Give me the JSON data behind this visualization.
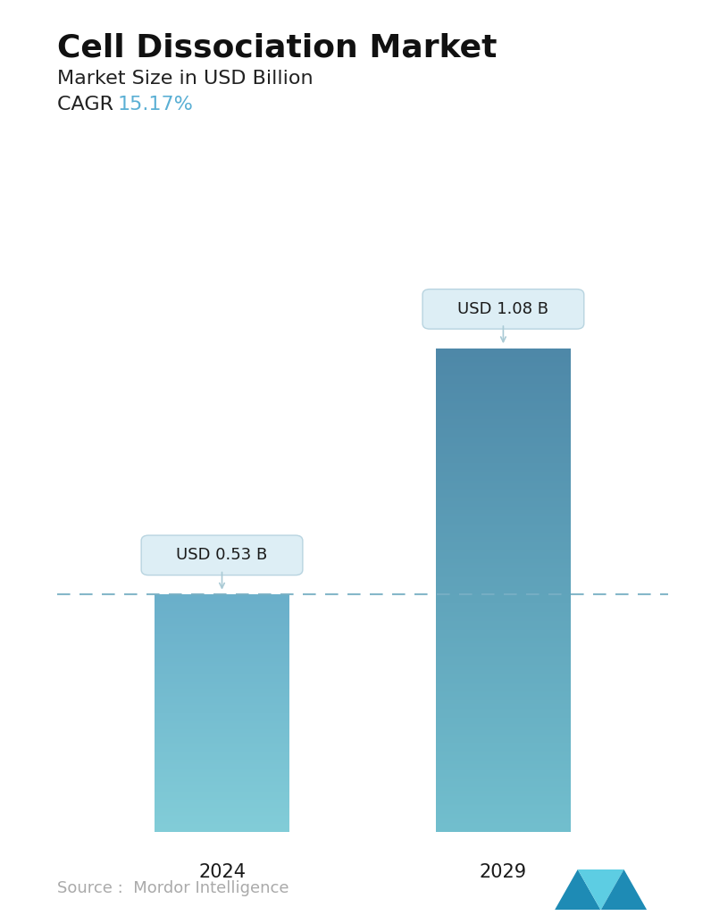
{
  "title": "Cell Dissociation Market",
  "subtitle": "Market Size in USD Billion",
  "cagr_label": "CAGR ",
  "cagr_value": "15.17%",
  "cagr_color": "#5aafd4",
  "categories": [
    "2024",
    "2029"
  ],
  "values": [
    0.53,
    1.08
  ],
  "bar_labels": [
    "USD 0.53 B",
    "USD 1.08 B"
  ],
  "bar_color_top_2024": "#7ab8cc",
  "bar_color_bot_2024": "#6ab5c8",
  "bar_color_top_2029": "#5a8faa",
  "bar_color_bot_2029": "#7abfcf",
  "dashed_line_color": "#78afc4",
  "callout_bg": "#ddeef5",
  "callout_edge": "#b8d4e0",
  "source_text": "Source :  Mordor Intelligence",
  "source_color": "#aaaaaa",
  "background_color": "#ffffff",
  "title_fontsize": 26,
  "subtitle_fontsize": 16,
  "cagr_fontsize": 16,
  "bar_label_fontsize": 13,
  "tick_fontsize": 15,
  "source_fontsize": 13,
  "ylim_max": 1.28,
  "bar_width": 0.22
}
